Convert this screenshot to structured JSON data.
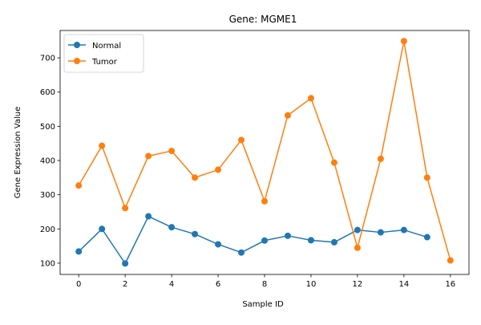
{
  "chart_data": {
    "type": "line",
    "title": "Gene: MGME1",
    "xlabel": "Sample ID",
    "ylabel": "Gene Expression Value",
    "xlim": [
      -0.8,
      16.8
    ],
    "ylim": [
      67,
      780
    ],
    "xticks": [
      0,
      2,
      4,
      6,
      8,
      10,
      12,
      14,
      16
    ],
    "yticks": [
      100,
      200,
      300,
      400,
      500,
      600,
      700
    ],
    "grid": false,
    "legend_position": "upper left",
    "series": [
      {
        "name": "Normal",
        "color": "#1f77b4",
        "x": [
          0,
          1,
          2,
          3,
          4,
          5,
          6,
          7,
          8,
          9,
          10,
          11,
          12,
          13,
          14,
          15
        ],
        "values": [
          134,
          200,
          99,
          237,
          205,
          185,
          155,
          131,
          166,
          180,
          167,
          161,
          197,
          190,
          197,
          176
        ]
      },
      {
        "name": "Tumor",
        "color": "#ff7f0e",
        "x": [
          0,
          1,
          2,
          3,
          4,
          5,
          6,
          7,
          8,
          9,
          10,
          11,
          12,
          13,
          14,
          15,
          16
        ],
        "values": [
          327,
          443,
          261,
          413,
          428,
          350,
          373,
          460,
          281,
          532,
          582,
          394,
          145,
          405,
          749,
          350,
          108
        ]
      }
    ]
  }
}
